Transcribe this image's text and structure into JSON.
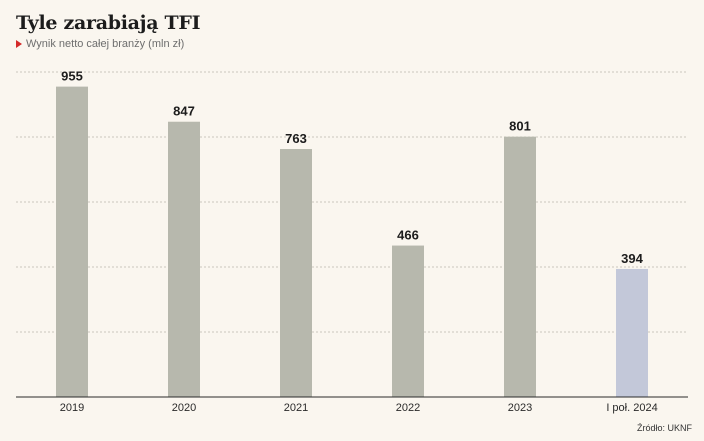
{
  "title": "Tyle zarabiają TFI",
  "subtitle": "Wynik netto całej branży (mln zł)",
  "source": "Źródło: UKNF",
  "colors": {
    "bar": "#b7b8ad",
    "bar_highlight": "#c3c8d9",
    "marker": "#d42a2a"
  },
  "chart_data": {
    "type": "bar",
    "categories": [
      "2019",
      "2020",
      "2021",
      "2022",
      "2023",
      "I poł. 2024"
    ],
    "values": [
      955,
      847,
      763,
      466,
      801,
      394
    ],
    "highlight_index": 5,
    "ylim": [
      0,
      1000
    ],
    "grid": true,
    "title": "Tyle zarabiają TFI",
    "xlabel": "",
    "ylabel": ""
  }
}
